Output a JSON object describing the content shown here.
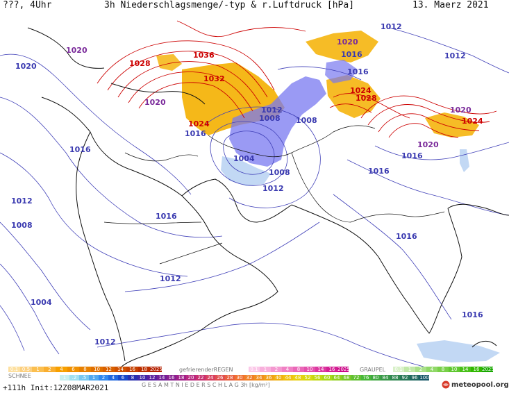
{
  "header": {
    "left": "???, 4Uhr",
    "title": "3h Niederschlagsmenge/-typ & r.Luftdruck [hPa]",
    "date": "13. Maerz 2021"
  },
  "footer": {
    "run": "+111h Init:12Z08MAR2021",
    "brand": "meteopool.org"
  },
  "legend": {
    "snow": {
      "title": "SCHNEE",
      "values": [
        "0.1",
        "0.5",
        "1",
        "2",
        "4",
        "6",
        "8",
        "10",
        "12",
        "14",
        "16",
        "18",
        "2025+"
      ]
    },
    "freezing_rain": {
      "title": "gefrierenderREGEN",
      "values": [
        "0.1",
        "1",
        "2",
        "4",
        "8",
        "10",
        "14",
        "16",
        "2025+"
      ]
    },
    "graupel": {
      "title": "GRAUPEL",
      "values": [
        "0.1",
        "1",
        "2",
        "4",
        "8",
        "10",
        "14",
        "16",
        "2025+"
      ]
    },
    "total": {
      "title": "G E S A M T N I E D E R S C H L A G   3h   [kg/m²]",
      "values": [
        "1",
        ".2",
        ".5",
        "1",
        "2",
        "4",
        "6",
        "8",
        "10",
        "12",
        "14",
        "16",
        "18",
        "20",
        "22",
        "24",
        "26",
        "28",
        "30",
        "32",
        "34",
        "36",
        "40",
        "44",
        "48",
        "52",
        "56",
        "60",
        "64",
        "68",
        "72",
        "76",
        "80",
        "84",
        "88",
        "92",
        "96",
        "100"
      ]
    }
  },
  "isobar_labels": [
    {
      "text": "1036",
      "color": "#cc0000"
    },
    {
      "text": "1032",
      "color": "#cc0000"
    },
    {
      "text": "1028",
      "color": "#cc0000"
    },
    {
      "text": "1024",
      "color": "#cc0000"
    },
    {
      "text": "1024",
      "color": "#cc0000"
    },
    {
      "text": "1028",
      "color": "#cc0000"
    },
    {
      "text": "1024",
      "color": "#cc0000"
    },
    {
      "text": "1020",
      "color": "#7a2a9a"
    },
    {
      "text": "1020",
      "color": "#3a3ab0"
    },
    {
      "text": "1020",
      "color": "#7a2a9a"
    },
    {
      "text": "1020",
      "color": "#7a2a9a"
    },
    {
      "text": "1020",
      "color": "#7a2a9a"
    },
    {
      "text": "1020",
      "color": "#7a2a9a"
    },
    {
      "text": "1016",
      "color": "#3a3ab0"
    },
    {
      "text": "1016",
      "color": "#3a3ab0"
    },
    {
      "text": "1016",
      "color": "#3a3ab0"
    },
    {
      "text": "1016",
      "color": "#3a3ab0"
    },
    {
      "text": "1016",
      "color": "#3a3ab0"
    },
    {
      "text": "1016",
      "color": "#3a3ab0"
    },
    {
      "text": "1016",
      "color": "#3a3ab0"
    },
    {
      "text": "1016",
      "color": "#3a3ab0"
    },
    {
      "text": "1016",
      "color": "#3a3ab0"
    },
    {
      "text": "1012",
      "color": "#3a3ab0"
    },
    {
      "text": "1012",
      "color": "#3a3ab0"
    },
    {
      "text": "1012",
      "color": "#3a3ab0"
    },
    {
      "text": "1012",
      "color": "#3a3ab0"
    },
    {
      "text": "1012",
      "color": "#3a3ab0"
    },
    {
      "text": "1012",
      "color": "#3a3ab0"
    },
    {
      "text": "1012",
      "color": "#3a3ab0"
    },
    {
      "text": "1008",
      "color": "#3a3ab0"
    },
    {
      "text": "1008",
      "color": "#3a3ab0"
    },
    {
      "text": "1008",
      "color": "#3a3ab0"
    },
    {
      "text": "1008",
      "color": "#3a3ab0"
    },
    {
      "text": "1004",
      "color": "#3a3ab0"
    },
    {
      "text": "1004",
      "color": "#3a3ab0"
    }
  ],
  "colors": {
    "snow": "#f0a000",
    "rain": "#6a6af0",
    "light_rain": "#a8c8f0",
    "high_isobar": "#cc0000",
    "low_isobar": "#3a3ab0",
    "coast": "#111111"
  }
}
